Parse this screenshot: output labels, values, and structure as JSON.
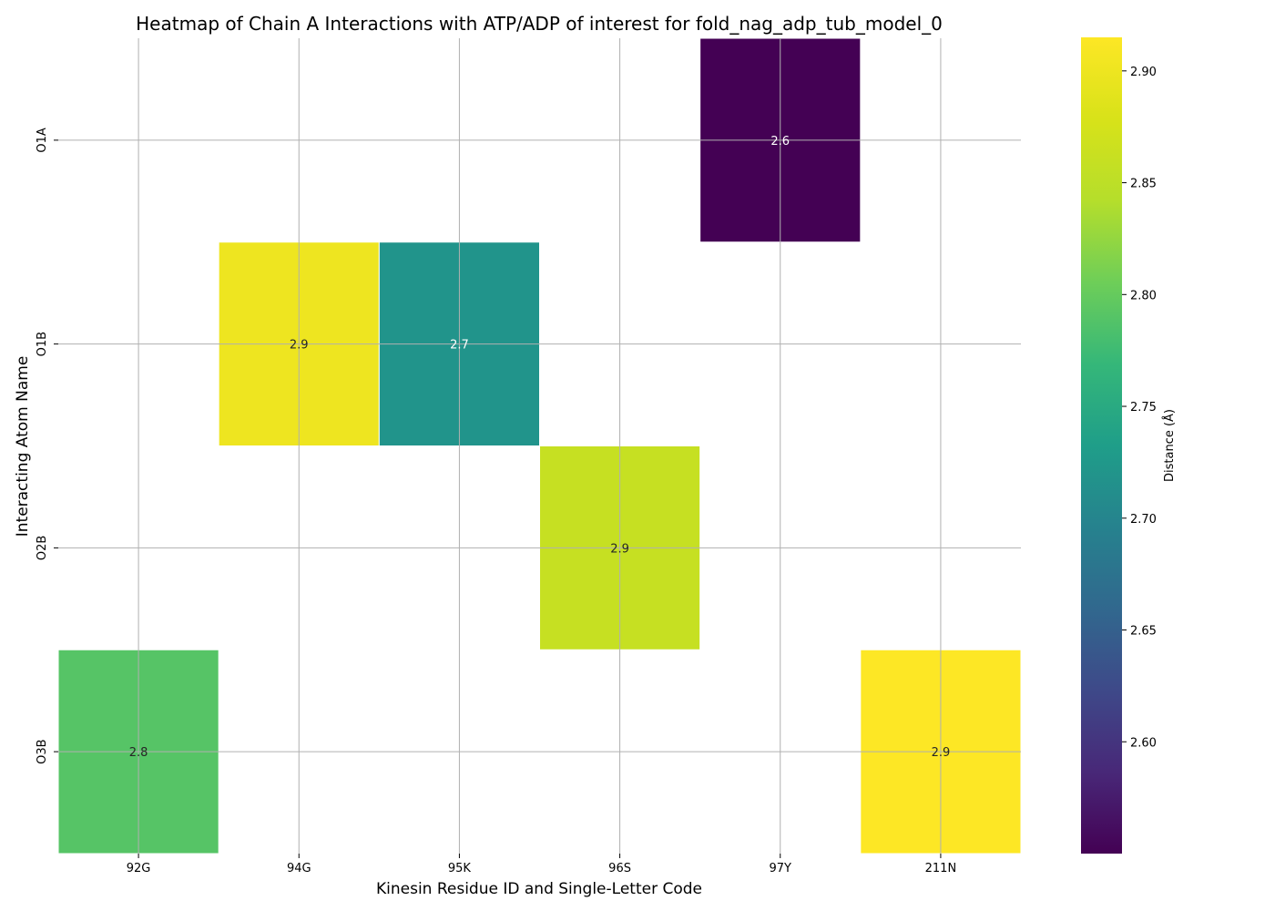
{
  "chart_data": {
    "type": "heatmap",
    "title": "Heatmap of Chain A Interactions with ATP/ADP of interest for fold_nag_adp_tub_model_0",
    "xlabel": "Kinesin Residue ID and Single-Letter Code",
    "ylabel": "Interacting Atom Name",
    "x_categories": [
      "92G",
      "94G",
      "95K",
      "96S",
      "97Y",
      "211N"
    ],
    "y_categories": [
      "O1A",
      "O1B",
      "O2B",
      "O3B"
    ],
    "cells": [
      {
        "x": "97Y",
        "y": "O1A",
        "value": 2.55,
        "label": "2.6"
      },
      {
        "x": "94G",
        "y": "O1B",
        "value": 2.9,
        "label": "2.9"
      },
      {
        "x": "95K",
        "y": "O1B",
        "value": 2.72,
        "label": "2.7"
      },
      {
        "x": "96S",
        "y": "O2B",
        "value": 2.86,
        "label": "2.9"
      },
      {
        "x": "92G",
        "y": "O3B",
        "value": 2.79,
        "label": "2.8"
      },
      {
        "x": "211N",
        "y": "O3B",
        "value": 2.915,
        "label": "2.9"
      }
    ],
    "colormap": "viridis",
    "colorbar": {
      "label": "Distance (Å)",
      "range": [
        2.55,
        2.915
      ],
      "ticks": [
        "2.60",
        "2.65",
        "2.70",
        "2.75",
        "2.80",
        "2.85",
        "2.90"
      ]
    },
    "grid": true
  }
}
